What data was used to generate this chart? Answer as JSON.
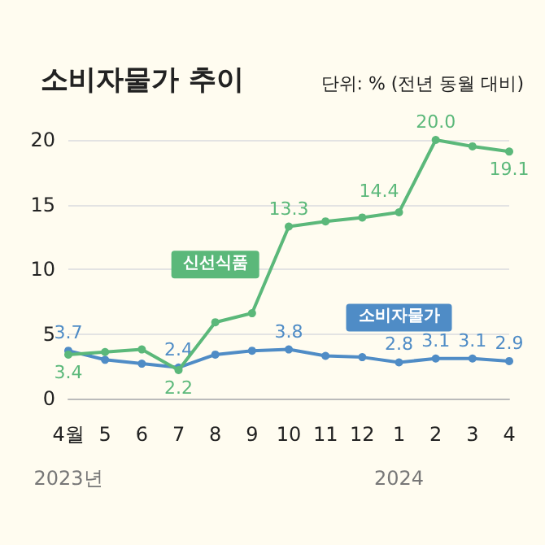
{
  "chart_data": {
    "type": "line",
    "title": "소비자물가 추이",
    "subtitle": "단위: % (전년 동월 대비)",
    "categories": [
      "4월",
      "5",
      "6",
      "7",
      "8",
      "9",
      "10",
      "11",
      "12",
      "1",
      "2",
      "3",
      "4"
    ],
    "series": [
      {
        "name": "신선식품",
        "color": "#5bb87a",
        "values": [
          3.4,
          3.6,
          3.8,
          2.2,
          5.9,
          6.6,
          13.3,
          13.7,
          14.0,
          14.4,
          20.0,
          19.5,
          19.1
        ],
        "value_labels": [
          "3.4",
          null,
          null,
          "2.2",
          null,
          null,
          "13.3",
          null,
          null,
          "14.4",
          "20.0",
          null,
          "19.1"
        ]
      },
      {
        "name": "소비자물가",
        "color": "#4f8cc6",
        "values": [
          3.7,
          3.0,
          2.7,
          2.4,
          3.4,
          3.7,
          3.8,
          3.3,
          3.2,
          2.8,
          3.1,
          3.1,
          2.9
        ],
        "value_labels": [
          "3.7",
          null,
          null,
          "2.4",
          null,
          null,
          "3.8",
          null,
          null,
          "2.8",
          "3.1",
          "3.1",
          "2.9"
        ]
      }
    ],
    "annotations": [
      "2023년",
      "2024"
    ],
    "ylim": [
      0,
      20
    ],
    "yticks": [
      0,
      5,
      10,
      15,
      20
    ],
    "grid": "y",
    "legend": false,
    "marker": "circle",
    "line_style": "solid"
  }
}
